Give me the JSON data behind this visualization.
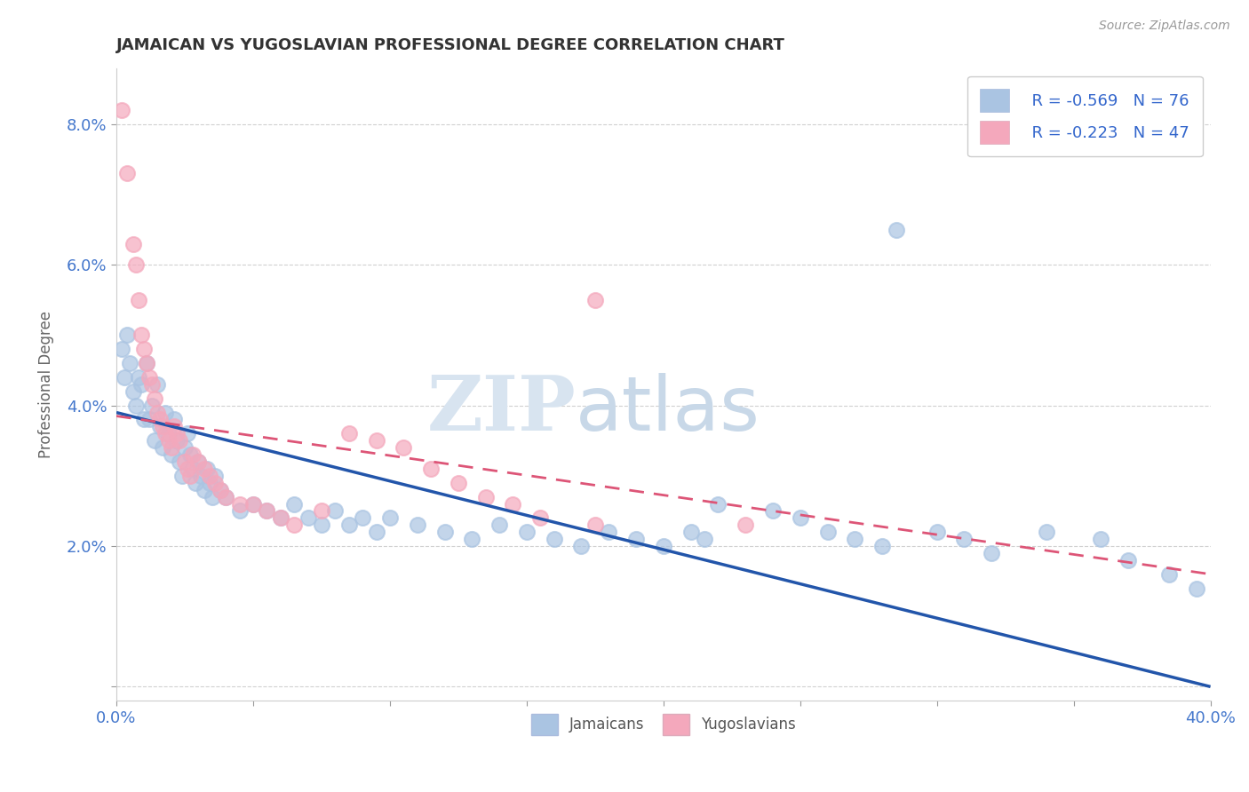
{
  "title": "JAMAICAN VS YUGOSLAVIAN PROFESSIONAL DEGREE CORRELATION CHART",
  "source": "Source: ZipAtlas.com",
  "ylabel": "Professional Degree",
  "xlim": [
    0.0,
    0.4
  ],
  "ylim": [
    -0.002,
    0.088
  ],
  "yticks": [
    0.0,
    0.02,
    0.04,
    0.06,
    0.08
  ],
  "ytick_labels": [
    "",
    "2.0%",
    "4.0%",
    "6.0%",
    "8.0%"
  ],
  "legend_r1": "R = -0.569",
  "legend_n1": "N = 76",
  "legend_r2": "R = -0.223",
  "legend_n2": "N = 47",
  "jamaican_color": "#aac4e2",
  "yugoslavian_color": "#f4a8bc",
  "line1_color": "#2255aa",
  "line2_color": "#dd5577",
  "watermark_zip": "ZIP",
  "watermark_atlas": "atlas",
  "jamaican_scatter": [
    [
      0.002,
      0.048
    ],
    [
      0.003,
      0.044
    ],
    [
      0.004,
      0.05
    ],
    [
      0.005,
      0.046
    ],
    [
      0.006,
      0.042
    ],
    [
      0.007,
      0.04
    ],
    [
      0.008,
      0.044
    ],
    [
      0.009,
      0.043
    ],
    [
      0.01,
      0.038
    ],
    [
      0.011,
      0.046
    ],
    [
      0.012,
      0.038
    ],
    [
      0.013,
      0.04
    ],
    [
      0.014,
      0.035
    ],
    [
      0.015,
      0.043
    ],
    [
      0.016,
      0.037
    ],
    [
      0.017,
      0.034
    ],
    [
      0.018,
      0.039
    ],
    [
      0.019,
      0.036
    ],
    [
      0.02,
      0.033
    ],
    [
      0.021,
      0.038
    ],
    [
      0.022,
      0.035
    ],
    [
      0.023,
      0.032
    ],
    [
      0.024,
      0.03
    ],
    [
      0.025,
      0.034
    ],
    [
      0.026,
      0.036
    ],
    [
      0.027,
      0.033
    ],
    [
      0.028,
      0.031
    ],
    [
      0.029,
      0.029
    ],
    [
      0.03,
      0.032
    ],
    [
      0.031,
      0.03
    ],
    [
      0.032,
      0.028
    ],
    [
      0.033,
      0.031
    ],
    [
      0.034,
      0.029
    ],
    [
      0.035,
      0.027
    ],
    [
      0.036,
      0.03
    ],
    [
      0.038,
      0.028
    ],
    [
      0.04,
      0.027
    ],
    [
      0.045,
      0.025
    ],
    [
      0.05,
      0.026
    ],
    [
      0.055,
      0.025
    ],
    [
      0.06,
      0.024
    ],
    [
      0.065,
      0.026
    ],
    [
      0.07,
      0.024
    ],
    [
      0.075,
      0.023
    ],
    [
      0.08,
      0.025
    ],
    [
      0.085,
      0.023
    ],
    [
      0.09,
      0.024
    ],
    [
      0.095,
      0.022
    ],
    [
      0.1,
      0.024
    ],
    [
      0.11,
      0.023
    ],
    [
      0.12,
      0.022
    ],
    [
      0.13,
      0.021
    ],
    [
      0.14,
      0.023
    ],
    [
      0.15,
      0.022
    ],
    [
      0.16,
      0.021
    ],
    [
      0.17,
      0.02
    ],
    [
      0.18,
      0.022
    ],
    [
      0.19,
      0.021
    ],
    [
      0.2,
      0.02
    ],
    [
      0.21,
      0.022
    ],
    [
      0.215,
      0.021
    ],
    [
      0.22,
      0.026
    ],
    [
      0.24,
      0.025
    ],
    [
      0.25,
      0.024
    ],
    [
      0.26,
      0.022
    ],
    [
      0.27,
      0.021
    ],
    [
      0.28,
      0.02
    ],
    [
      0.3,
      0.022
    ],
    [
      0.31,
      0.021
    ],
    [
      0.32,
      0.019
    ],
    [
      0.34,
      0.022
    ],
    [
      0.36,
      0.021
    ],
    [
      0.37,
      0.018
    ],
    [
      0.385,
      0.016
    ],
    [
      0.395,
      0.014
    ],
    [
      0.285,
      0.065
    ]
  ],
  "yugoslavian_scatter": [
    [
      0.002,
      0.082
    ],
    [
      0.004,
      0.073
    ],
    [
      0.006,
      0.063
    ],
    [
      0.007,
      0.06
    ],
    [
      0.008,
      0.055
    ],
    [
      0.009,
      0.05
    ],
    [
      0.01,
      0.048
    ],
    [
      0.011,
      0.046
    ],
    [
      0.012,
      0.044
    ],
    [
      0.013,
      0.043
    ],
    [
      0.014,
      0.041
    ],
    [
      0.015,
      0.039
    ],
    [
      0.016,
      0.038
    ],
    [
      0.017,
      0.037
    ],
    [
      0.018,
      0.036
    ],
    [
      0.019,
      0.035
    ],
    [
      0.02,
      0.034
    ],
    [
      0.021,
      0.037
    ],
    [
      0.022,
      0.036
    ],
    [
      0.023,
      0.035
    ],
    [
      0.025,
      0.032
    ],
    [
      0.026,
      0.031
    ],
    [
      0.027,
      0.03
    ],
    [
      0.028,
      0.033
    ],
    [
      0.03,
      0.032
    ],
    [
      0.032,
      0.031
    ],
    [
      0.034,
      0.03
    ],
    [
      0.036,
      0.029
    ],
    [
      0.038,
      0.028
    ],
    [
      0.04,
      0.027
    ],
    [
      0.045,
      0.026
    ],
    [
      0.05,
      0.026
    ],
    [
      0.055,
      0.025
    ],
    [
      0.06,
      0.024
    ],
    [
      0.065,
      0.023
    ],
    [
      0.075,
      0.025
    ],
    [
      0.085,
      0.036
    ],
    [
      0.095,
      0.035
    ],
    [
      0.105,
      0.034
    ],
    [
      0.115,
      0.031
    ],
    [
      0.125,
      0.029
    ],
    [
      0.135,
      0.027
    ],
    [
      0.145,
      0.026
    ],
    [
      0.155,
      0.024
    ],
    [
      0.175,
      0.023
    ],
    [
      0.23,
      0.023
    ],
    [
      0.175,
      0.055
    ]
  ],
  "line_jamaican": [
    [
      0.0,
      0.039
    ],
    [
      0.4,
      0.0
    ]
  ],
  "line_yugoslavian": [
    [
      0.0,
      0.0385
    ],
    [
      0.4,
      0.016
    ]
  ]
}
